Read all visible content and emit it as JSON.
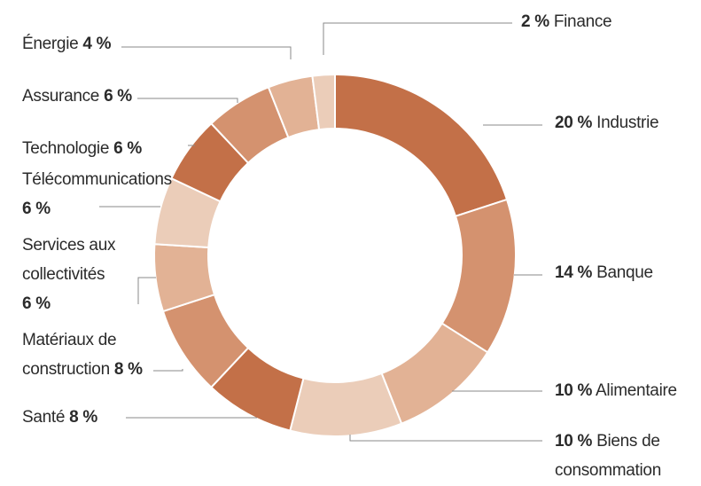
{
  "chart_data": {
    "type": "pie",
    "donut": true,
    "title": "",
    "legend": "none",
    "unit": "%",
    "colors": {
      "dark": "#c37048",
      "mid": "#d4926f",
      "light": "#e2b295",
      "pale": "#ebcdb9",
      "leader_line": "#8a8a8a"
    },
    "slices": [
      {
        "label": "Industrie",
        "value": 20,
        "color": "#c37048"
      },
      {
        "label": "Banque",
        "value": 14,
        "color": "#d4926f"
      },
      {
        "label": "Alimentaire",
        "value": 10,
        "color": "#e2b295"
      },
      {
        "label": "Biens de consommation",
        "value": 10,
        "color": "#ebcdb9"
      },
      {
        "label": "Santé",
        "value": 8,
        "color": "#c37048"
      },
      {
        "label": "Matériaux de construction",
        "value": 8,
        "color": "#d4926f"
      },
      {
        "label": "Services aux collectivités",
        "value": 6,
        "color": "#e2b295"
      },
      {
        "label": "Télécommunications",
        "value": 6,
        "color": "#ebcdb9"
      },
      {
        "label": "Technologie",
        "value": 6,
        "color": "#c37048"
      },
      {
        "label": "Assurance",
        "value": 6,
        "color": "#d4926f"
      },
      {
        "label": "Énergie",
        "value": 4,
        "color": "#e2b295"
      },
      {
        "label": "Finance",
        "value": 2,
        "color": "#ebcdb9"
      }
    ],
    "labels": {
      "industrie": {
        "pct": "20 %",
        "name": "Industrie"
      },
      "banque": {
        "pct": "14 %",
        "name": "Banque"
      },
      "alimentaire": {
        "pct": "10 %",
        "name": "Alimentaire"
      },
      "biens": {
        "pct": "10 %",
        "name_1": "Biens de",
        "name_2": "consommation"
      },
      "sante": {
        "name": "Santé",
        "pct": "8 %"
      },
      "materiaux": {
        "name_1": "Matériaux de",
        "name_2": "construction",
        "pct": "8 %"
      },
      "services": {
        "name_1": "Services aux",
        "name_2": "collectivités",
        "pct": "6 %"
      },
      "telecom": {
        "name": "Télécommunications",
        "pct": "6 %"
      },
      "technologie": {
        "name": "Technologie",
        "pct": "6 %"
      },
      "assurance": {
        "name": "Assurance",
        "pct": "6 %"
      },
      "energie": {
        "name": "Énergie",
        "pct": "4 %"
      },
      "finance": {
        "pct": "2 %",
        "name": "Finance"
      }
    }
  }
}
